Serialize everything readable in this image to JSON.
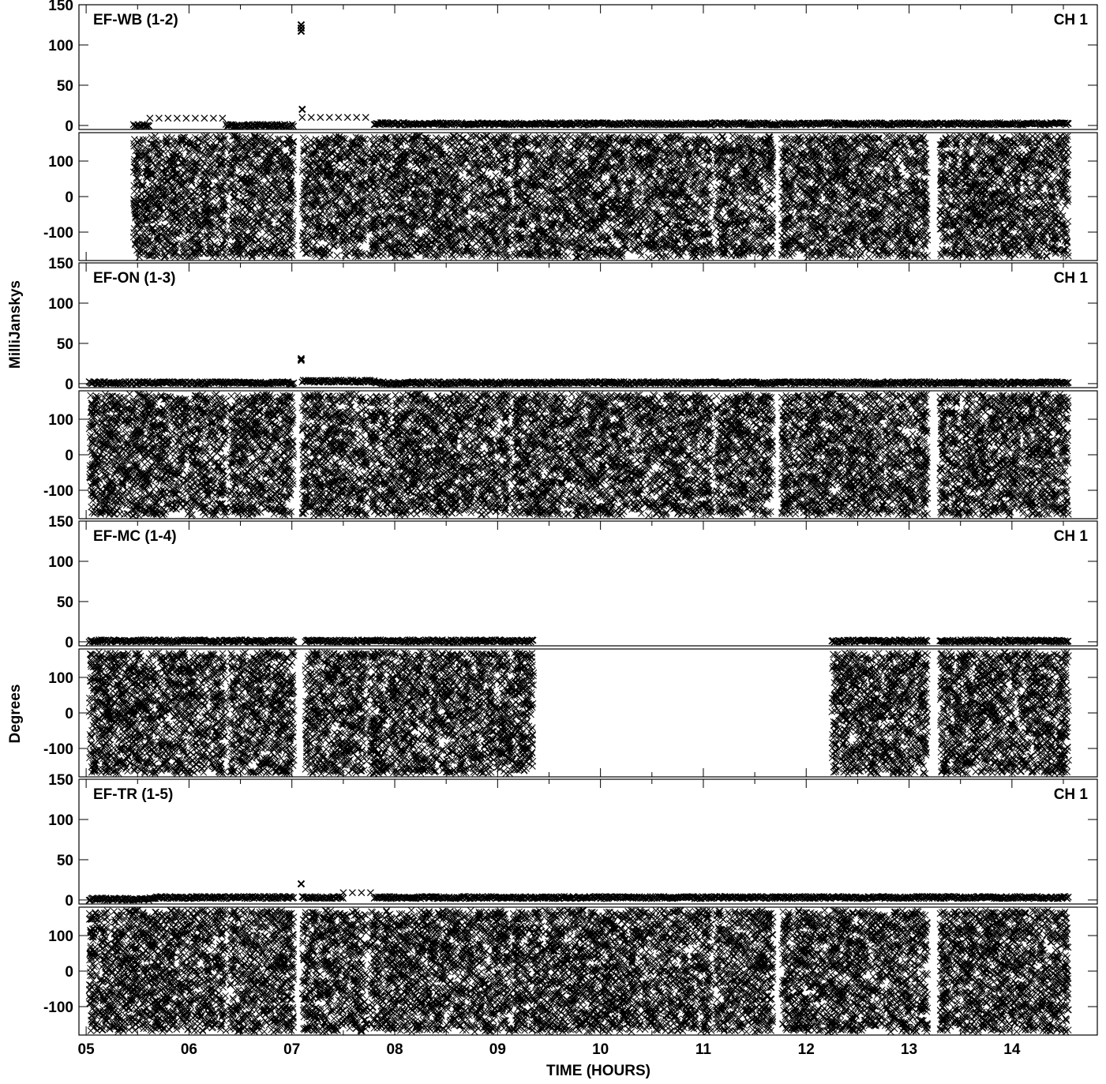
{
  "chart_data": {
    "type": "scatter",
    "marker": "x",
    "marker_color": "#000000",
    "x_axis": {
      "label": "TIME (HOURS)",
      "range": [
        4.93,
        14.83
      ],
      "ticks": [
        5,
        6,
        7,
        8,
        9,
        10,
        11,
        12,
        13,
        14
      ],
      "tick_labels": [
        "05",
        "06",
        "07",
        "08",
        "09",
        "10",
        "11",
        "12",
        "13",
        "14"
      ]
    },
    "y_labels": {
      "amplitude": "MilliJanskys",
      "phase": "Degrees"
    },
    "amplitude_axis": {
      "range": [
        -5,
        150
      ],
      "ticks": [
        0,
        50,
        100,
        150
      ],
      "tick_labels": [
        "0",
        "50",
        "100",
        "150"
      ]
    },
    "phase_axis": {
      "range": [
        -180,
        180
      ],
      "ticks": [
        -100,
        0,
        100
      ],
      "tick_labels": [
        "-100",
        "0",
        "100"
      ]
    },
    "panels": [
      {
        "baseline": "EF-WB (1-2)",
        "channel": "CH 1",
        "amp_data_segments": [
          [
            5.46,
            7.02
          ],
          [
            7.08,
            14.55
          ]
        ],
        "phase_data_segments": [
          [
            5.46,
            6.36
          ],
          [
            6.4,
            7.02
          ],
          [
            7.1,
            7.73
          ],
          [
            7.76,
            9.12
          ],
          [
            9.15,
            11.08
          ],
          [
            11.12,
            11.68
          ],
          [
            11.76,
            13.18
          ],
          [
            13.3,
            14.55
          ]
        ],
        "amp_level_segments": [
          {
            "range": [
              5.46,
              5.62
            ],
            "value": 0
          },
          {
            "range": [
              5.62,
              6.36
            ],
            "value": 9
          },
          {
            "range": [
              6.36,
              7.02
            ],
            "value": 0
          },
          {
            "range": [
              7.1,
              7.8
            ],
            "value": 10
          },
          {
            "range": [
              7.8,
              14.55
            ],
            "value": 2
          }
        ],
        "amp_outliers": [
          {
            "x": 7.09,
            "y": 125
          },
          {
            "x": 7.09,
            "y": 121
          },
          {
            "x": 7.09,
            "y": 117
          },
          {
            "x": 7.1,
            "y": 20
          }
        ]
      },
      {
        "baseline": "EF-ON (1-3)",
        "channel": "CH 1",
        "amp_data_segments": [
          [
            5.03,
            7.02
          ],
          [
            7.08,
            14.55
          ]
        ],
        "phase_data_segments": [
          [
            5.03,
            6.36
          ],
          [
            6.4,
            7.02
          ],
          [
            7.1,
            7.73
          ],
          [
            7.76,
            9.12
          ],
          [
            9.15,
            11.08
          ],
          [
            11.12,
            11.68
          ],
          [
            11.76,
            13.18
          ],
          [
            13.3,
            14.55
          ]
        ],
        "amp_level_segments": [
          {
            "range": [
              5.03,
              7.02
            ],
            "value": 1
          },
          {
            "range": [
              7.1,
              7.8
            ],
            "value": 3
          },
          {
            "range": [
              7.8,
              14.55
            ],
            "value": 1
          }
        ],
        "amp_outliers": [
          {
            "x": 7.09,
            "y": 31
          },
          {
            "x": 7.09,
            "y": 29
          }
        ]
      },
      {
        "baseline": "EF-MC (1-4)",
        "channel": "CH 1",
        "amp_data_segments": [
          [
            5.03,
            7.02
          ],
          [
            7.13,
            9.35
          ],
          [
            12.25,
            13.18
          ],
          [
            13.3,
            14.55
          ]
        ],
        "phase_data_segments": [
          [
            5.03,
            6.36
          ],
          [
            6.4,
            7.02
          ],
          [
            7.13,
            7.73
          ],
          [
            7.76,
            9.35
          ],
          [
            12.25,
            13.18
          ],
          [
            13.3,
            14.55
          ]
        ],
        "amp_level_segments": [
          {
            "range": [
              5.03,
              7.02
            ],
            "value": 1
          },
          {
            "range": [
              7.13,
              9.35
            ],
            "value": 1
          },
          {
            "range": [
              12.25,
              13.18
            ],
            "value": 1
          },
          {
            "range": [
              13.3,
              14.55
            ],
            "value": 1
          }
        ],
        "amp_outliers": []
      },
      {
        "baseline": "EF-TR (1-5)",
        "channel": "CH 1",
        "amp_data_segments": [
          [
            5.03,
            7.02
          ],
          [
            7.08,
            14.55
          ]
        ],
        "phase_data_segments": [
          [
            5.03,
            6.36
          ],
          [
            6.4,
            7.02
          ],
          [
            7.1,
            7.73
          ],
          [
            7.76,
            9.12
          ],
          [
            9.15,
            11.08
          ],
          [
            11.12,
            11.68
          ],
          [
            11.76,
            13.18
          ],
          [
            13.3,
            14.55
          ]
        ],
        "amp_level_segments": [
          {
            "range": [
              5.03,
              5.62
            ],
            "value": 1
          },
          {
            "range": [
              5.62,
              7.02
            ],
            "value": 3
          },
          {
            "range": [
              7.1,
              7.5
            ],
            "value": 3
          },
          {
            "range": [
              7.5,
              7.8
            ],
            "value": 9
          },
          {
            "range": [
              7.8,
              14.55
            ],
            "value": 3
          }
        ],
        "amp_outliers": [
          {
            "x": 7.09,
            "y": 20
          }
        ]
      }
    ]
  }
}
